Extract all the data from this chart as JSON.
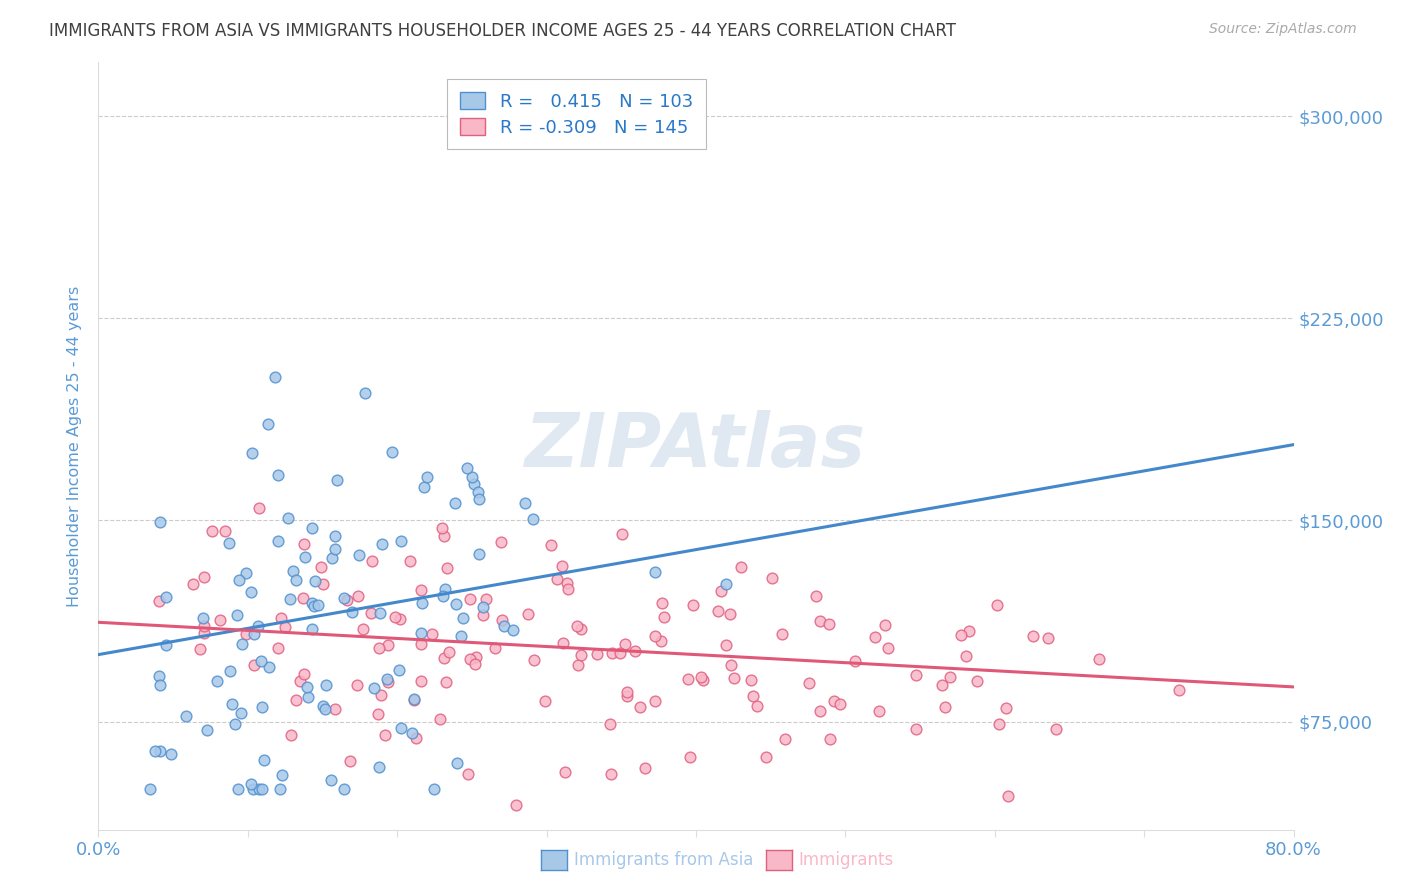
{
  "title": "IMMIGRANTS FROM ASIA VS IMMIGRANTS HOUSEHOLDER INCOME AGES 25 - 44 YEARS CORRELATION CHART",
  "source": "Source: ZipAtlas.com",
  "watermark": "ZIPAtlas",
  "ylabel": "Householder Income Ages 25 - 44 years",
  "xmin": 0.0,
  "xmax": 0.8,
  "ymin": 35000,
  "ymax": 320000,
  "yticks": [
    75000,
    150000,
    225000,
    300000
  ],
  "ytick_labels": [
    "$75,000",
    "$150,000",
    "$225,000",
    "$300,000"
  ],
  "xtick_positions": [
    0.0,
    0.1,
    0.2,
    0.3,
    0.4,
    0.5,
    0.6,
    0.7,
    0.8
  ],
  "xtick_labels": [
    "0.0%",
    "",
    "",
    "",
    "",
    "",
    "",
    "",
    "80.0%"
  ],
  "blue_R": 0.415,
  "blue_N": 103,
  "pink_R": -0.309,
  "pink_N": 145,
  "blue_color": "#a8c8e8",
  "pink_color": "#f9b8c8",
  "blue_edge_color": "#5090d0",
  "pink_edge_color": "#e06080",
  "blue_line_color": "#4488cc",
  "pink_line_color": "#e05878",
  "title_color": "#404040",
  "tick_color": "#5b9bd5",
  "grid_color": "#cccccc",
  "watermark_color": "#c8d8e8",
  "legend_text_color": "#2979c8",
  "blue_line_y0": 100000,
  "blue_line_y1": 178000,
  "pink_line_y0": 112000,
  "pink_line_y1": 88000
}
